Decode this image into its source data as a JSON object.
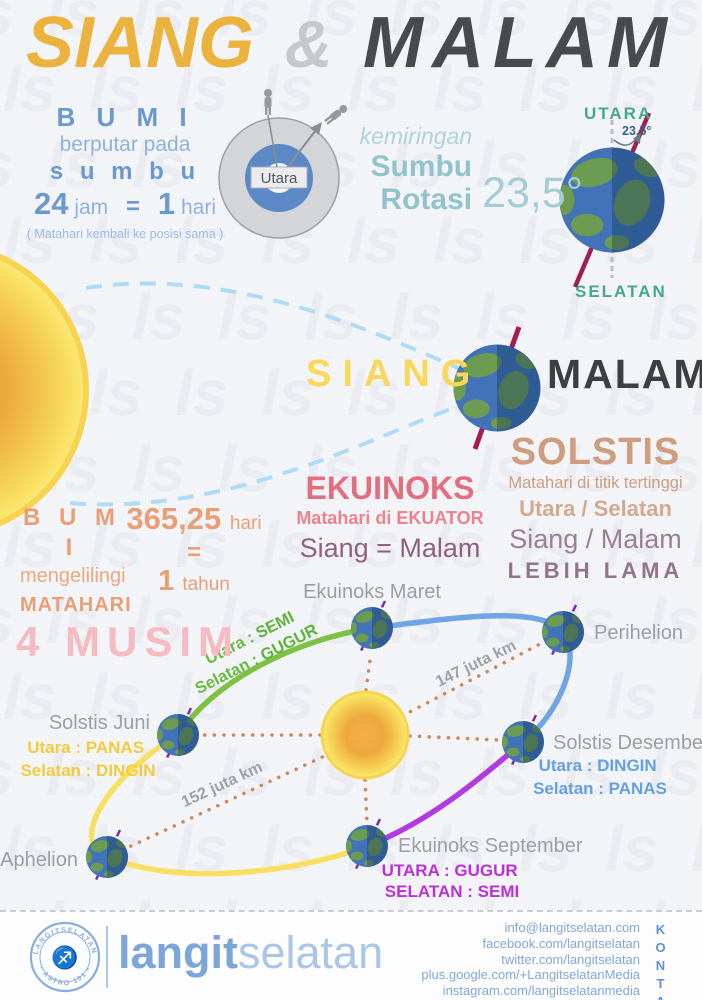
{
  "watermark": "ls",
  "title": {
    "siang": "SIANG",
    "amp": "&",
    "malam": "MALAM"
  },
  "rotation": {
    "bumi": "B U M I",
    "berputar": "berputar pada",
    "sumbu": "s u m b u",
    "n24": "24",
    "jam": "jam",
    "eq": "=",
    "n1": "1",
    "hari": "hari",
    "note": "( Matahari kembali ke posisi sama )",
    "utara": "Utara"
  },
  "tilt": {
    "kemiringan": "kemiringan",
    "sumbu": "Sumbu",
    "rotasi": "Rotasi",
    "angle": "23,5°",
    "angle_small": "23.5°",
    "utara": "UTARA",
    "selatan": "SELATAN"
  },
  "daynight": {
    "siang": "SIANG",
    "malam": "MALAM"
  },
  "solstis": {
    "title": "SOLSTIS",
    "sub": "Matahari di titik tertinggi",
    "utara_selatan": "Utara / Selatan",
    "siang_malam": "Siang / Malam",
    "lebih_lama": "LEBIH LAMA"
  },
  "ekuinoks": {
    "title": "EKUINOKS",
    "sub": "Matahari di EKUATOR",
    "equal": "Siang = Malam"
  },
  "revolution": {
    "bumi": "B U M I",
    "mengelilingi": "mengelilingi",
    "matahari": "MATAHARI",
    "days": "365,25",
    "hari": "hari",
    "eq": "=",
    "n1": "1",
    "tahun": "tahun"
  },
  "musim": "4 MUSIM",
  "orbit": {
    "maret": {
      "label": "Ekuinoks Maret",
      "p1": "Utara : ",
      "v1": "SEMI",
      "p2": "Selatan : ",
      "v2": "GUGUR"
    },
    "perihelion": {
      "label": "Perihelion"
    },
    "desember": {
      "label": "Solstis Desember",
      "p1": "Utara : ",
      "v1": "DINGIN",
      "p2": "Selatan : ",
      "v2": "PANAS"
    },
    "september": {
      "label": "Ekuinoks September",
      "p1": "UTARA : ",
      "v1": "GUGUR",
      "p2": "SELATAN : ",
      "v2": "SEMI"
    },
    "aphelion": {
      "label": "Aphelion"
    },
    "juni": {
      "label": "Solstis Juni",
      "p1": "Utara : ",
      "v1": "PANAS",
      "p2": "Selatan : ",
      "v2": "DINGIN"
    },
    "d147": "147 juta km",
    "d152": "152 juta km"
  },
  "footer": {
    "brand_bold": "langit",
    "brand_light": "selatan",
    "stamp_top": "LANGITSELATAN",
    "stamp_bottom": "• ASTRO 101 •",
    "stamp_glyph": "♐",
    "kontak": "KONTAK",
    "contacts": [
      "info@langitselatan.com",
      "facebook.com/langitselatan",
      "twitter.com/langitselatan",
      "plus.google.com/+LangitselatanMedia",
      "instagram.com/langitselatanmedia"
    ]
  }
}
